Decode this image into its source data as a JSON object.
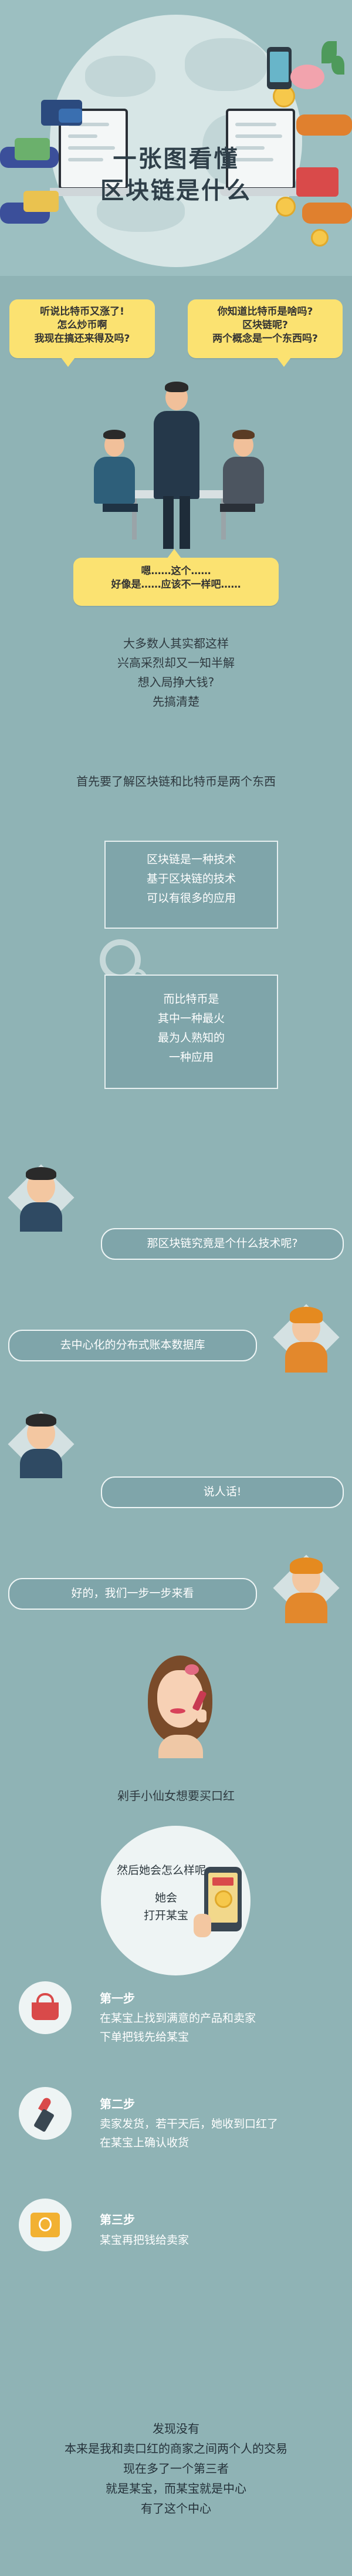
{
  "hero": {
    "title_line1": "一张图看懂",
    "title_line2": "区块链是什么"
  },
  "meeting": {
    "bubble_left": [
      "听说比特币又涨了!",
      "怎么炒币啊",
      "我现在搞还来得及吗?"
    ],
    "bubble_right": [
      "你知道比特币是啥吗?",
      "区块链呢?",
      "两个概念是一个东西吗?"
    ],
    "bubble_bottom": [
      "嗯……这个……",
      "好像是……应该不一样吧……"
    ]
  },
  "intro": {
    "lines": [
      "大多数人其实都这样",
      "兴高采烈却又一知半解",
      "想入局挣大钱?",
      "先搞清楚"
    ],
    "statement": "首先要了解区块链和比特币是两个东西"
  },
  "boxes": {
    "blockchain": [
      "区块链是一种技术",
      "基于区块链的技术",
      "可以有很多的应用"
    ],
    "bitcoin": [
      "而比特币是",
      "其中一种最火",
      "最为人熟知的",
      "一种应用"
    ]
  },
  "chat": {
    "q1": "那区块链究竟是个什么技术呢?",
    "a1": "去中心化的分布式账本数据库",
    "q2": "说人话!",
    "a2": "好的，我们一步一步来看"
  },
  "story": {
    "girl_caption": "剁手小仙女想要买口红",
    "circle_title": "然后她会怎么样呢",
    "circle_line1": "她会",
    "circle_line2": "打开某宝"
  },
  "steps": [
    {
      "title": "第一步",
      "lines": [
        "在某宝上找到满意的产品和卖家",
        "下单把钱先给某宝"
      ]
    },
    {
      "title": "第二步",
      "lines": [
        "卖家发货，若干天后，她收到口红了",
        "在某宝上确认收货"
      ]
    },
    {
      "title": "第三步",
      "lines": [
        "某宝再把钱给卖家"
      ]
    }
  ],
  "final": {
    "lines": [
      "发现没有",
      "本来是我和卖口红的商家之间两个人的交易",
      "现在多了一个第三者",
      "就是某宝，而某宝就是中心",
      "有了这个中心"
    ]
  },
  "colors": {
    "background": "#8fb3b5",
    "bubble_yellow": "#fbe271",
    "box_teal": "#7fa5aa",
    "title_dark": "#2f3f49"
  }
}
